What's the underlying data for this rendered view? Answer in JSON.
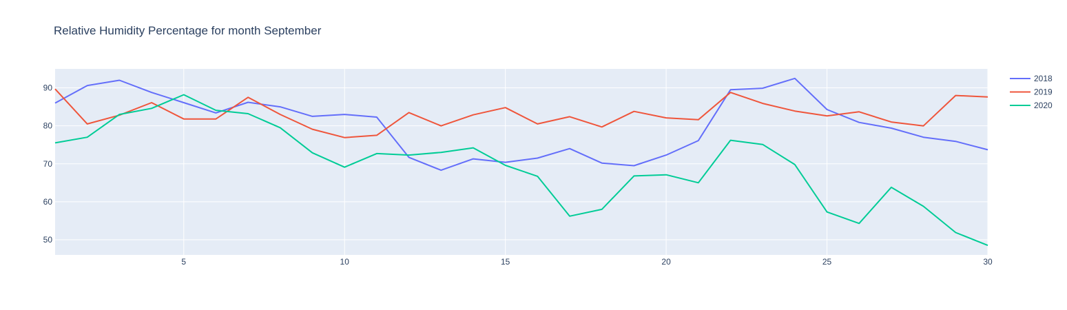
{
  "chart_data": {
    "type": "line",
    "title": "Relative Humidity Percentage for month September",
    "xlabel": "",
    "ylabel": "",
    "x": [
      1,
      2,
      3,
      4,
      5,
      6,
      7,
      8,
      9,
      10,
      11,
      12,
      13,
      14,
      15,
      16,
      17,
      18,
      19,
      20,
      21,
      22,
      23,
      24,
      25,
      26,
      27,
      28,
      29,
      30
    ],
    "xlim": [
      1,
      30
    ],
    "ylim": [
      46,
      95
    ],
    "xticks": [
      5,
      10,
      15,
      20,
      25,
      30
    ],
    "yticks": [
      50,
      60,
      70,
      80,
      90
    ],
    "grid": true,
    "legend_position": "right",
    "series": [
      {
        "name": "2018",
        "color": "#636efa",
        "values": [
          86.0,
          90.6,
          92.0,
          88.8,
          86.1,
          83.4,
          86.2,
          85.0,
          82.5,
          83.0,
          82.3,
          71.7,
          68.3,
          71.3,
          70.4,
          71.5,
          74.0,
          70.2,
          69.5,
          72.3,
          76.1,
          89.5,
          89.9,
          92.5,
          84.3,
          80.9,
          79.4,
          77.0,
          75.9,
          73.7
        ]
      },
      {
        "name": "2019",
        "color": "#ef553b",
        "values": [
          89.7,
          80.5,
          82.8,
          86.1,
          81.8,
          81.8,
          87.5,
          83.0,
          79.1,
          76.9,
          77.5,
          83.5,
          80.0,
          82.9,
          84.8,
          80.5,
          82.4,
          79.7,
          83.8,
          82.1,
          81.6,
          88.8,
          85.9,
          83.9,
          82.6,
          83.7,
          81.0,
          80.0,
          88.0,
          87.6
        ]
      },
      {
        "name": "2020",
        "color": "#00cc96",
        "values": [
          75.5,
          77.0,
          83.0,
          84.6,
          88.2,
          84.1,
          83.2,
          79.5,
          72.9,
          69.1,
          72.7,
          72.3,
          73.0,
          74.2,
          69.6,
          66.7,
          56.2,
          58.0,
          66.8,
          67.1,
          65.0,
          76.2,
          75.1,
          69.8,
          57.3,
          54.3,
          63.8,
          58.8,
          51.9,
          48.5
        ]
      }
    ]
  }
}
